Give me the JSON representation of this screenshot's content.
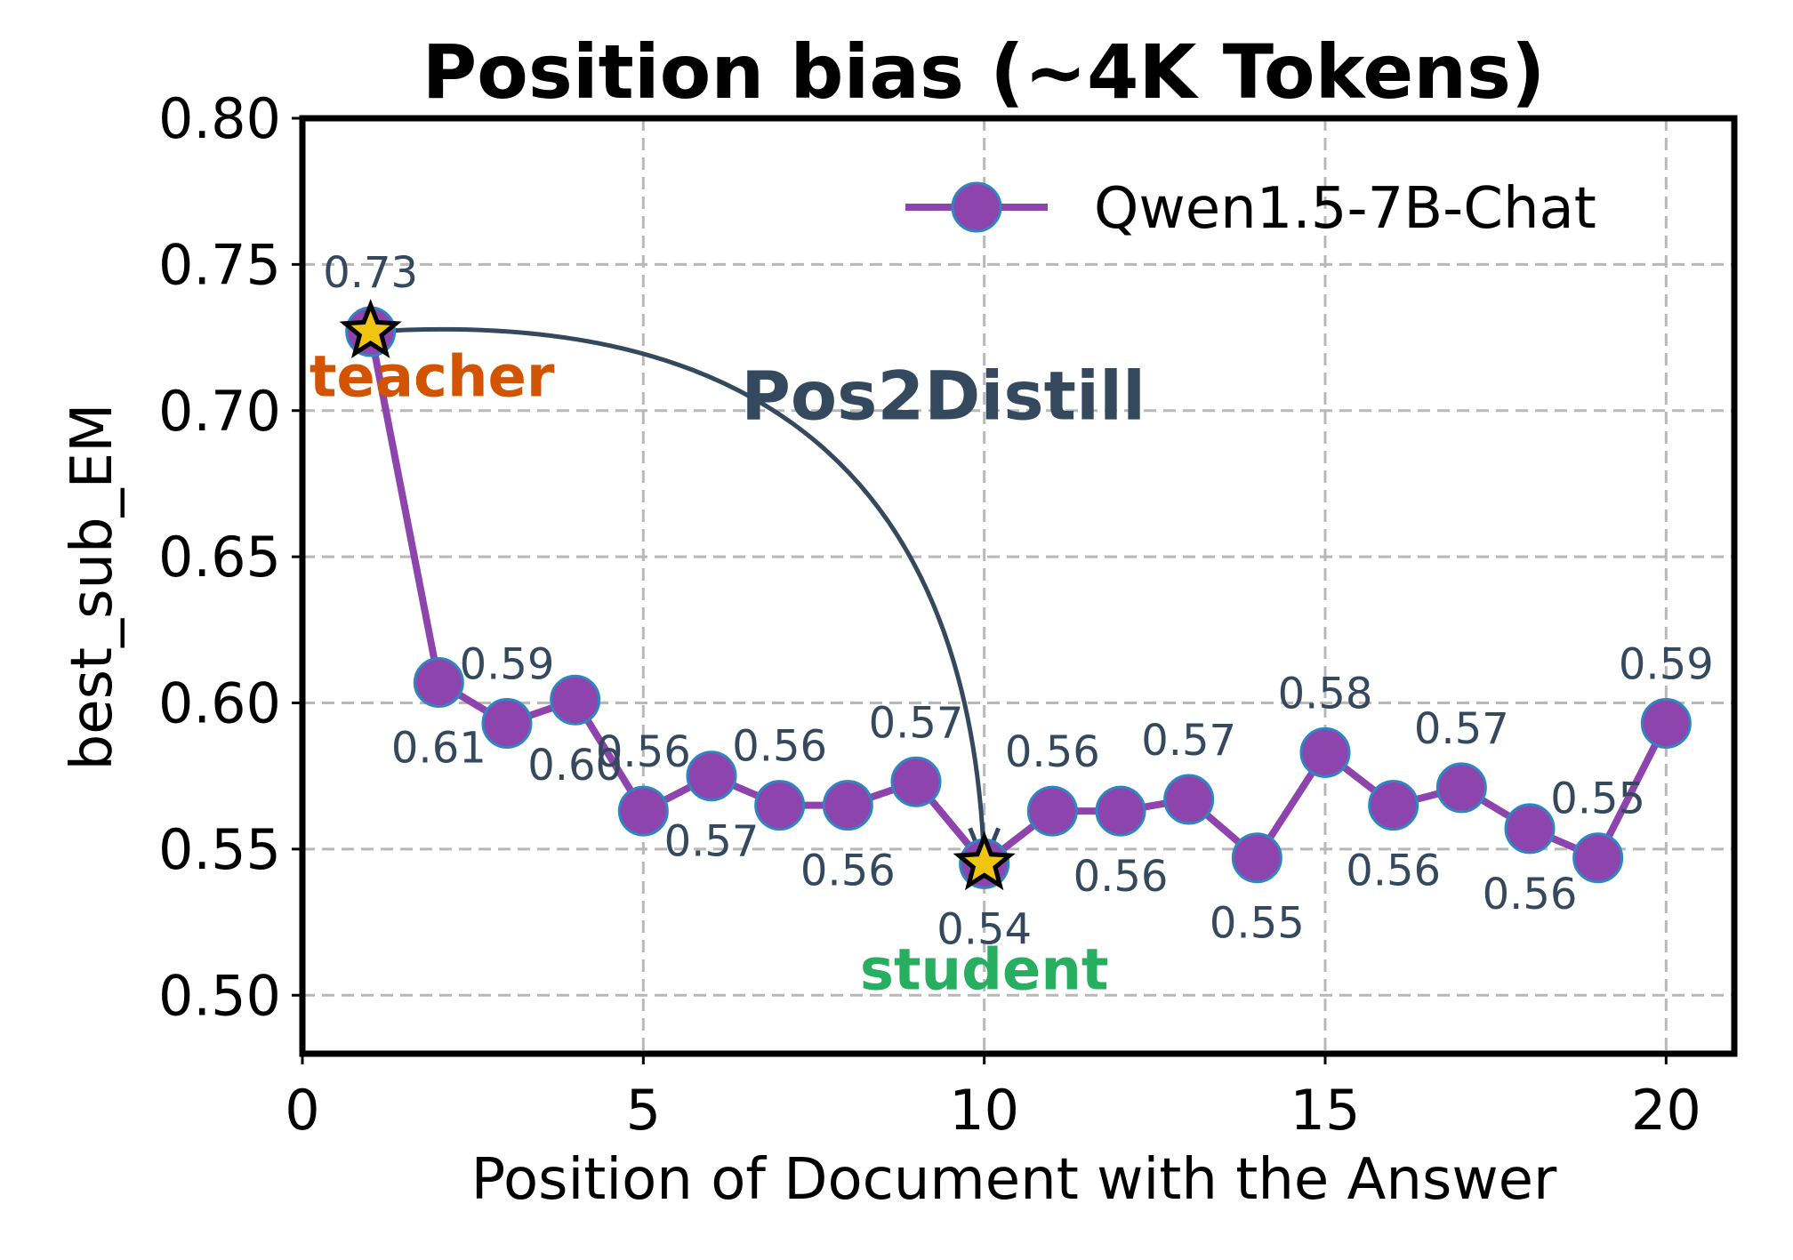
{
  "chart_data": {
    "type": "line",
    "title": "Position bias (~4K Tokens)",
    "xlabel": "Position of Document with the Answer",
    "ylabel": "best_sub_EM",
    "xlim": [
      0,
      21
    ],
    "ylim": [
      0.48,
      0.8
    ],
    "xticks": [
      0,
      5,
      10,
      15,
      20
    ],
    "yticks": [
      0.5,
      0.55,
      0.6,
      0.65,
      0.7,
      0.75,
      0.8
    ],
    "ytick_labels": [
      "0.50",
      "0.55",
      "0.60",
      "0.65",
      "0.70",
      "0.75",
      "0.80"
    ],
    "grid": true,
    "legend_position": "top-right",
    "series": [
      {
        "name": "Qwen1.5-7B-Chat",
        "color": "#8e44ad",
        "marker_edge": "#2e86c1",
        "x": [
          1,
          2,
          3,
          4,
          5,
          6,
          7,
          8,
          9,
          10,
          11,
          12,
          13,
          14,
          15,
          16,
          17,
          18,
          19,
          20
        ],
        "y": [
          0.727,
          0.607,
          0.593,
          0.601,
          0.563,
          0.575,
          0.565,
          0.565,
          0.573,
          0.545,
          0.563,
          0.563,
          0.567,
          0.547,
          0.583,
          0.565,
          0.571,
          0.557,
          0.547,
          0.593
        ],
        "labels": [
          "0.73",
          "0.61",
          "0.59",
          "0.60",
          "0.56",
          "0.57",
          "0.56",
          "0.56",
          "0.57",
          "0.54",
          "0.56",
          "0.56",
          "0.57",
          "0.55",
          "0.58",
          "0.56",
          "0.57",
          "0.56",
          "0.55",
          "0.59"
        ],
        "label_placement": [
          "above",
          "below",
          "above",
          "below",
          "above",
          "below",
          "above",
          "below",
          "above",
          "below",
          "above",
          "below",
          "above",
          "below",
          "above",
          "below",
          "above",
          "below",
          "above",
          "above"
        ]
      }
    ],
    "highlights": [
      {
        "x": 1,
        "y": 0.727,
        "marker": "star",
        "color": "#f1c40f"
      },
      {
        "x": 10,
        "y": 0.545,
        "marker": "star",
        "color": "#f1c40f"
      }
    ],
    "annotations": [
      {
        "text": "teacher",
        "color": "#d35400",
        "x": 1.9,
        "y": 0.705
      },
      {
        "text": "student",
        "color": "#27ae60",
        "x": 10.0,
        "y": 0.502
      },
      {
        "text": "Pos2Distill",
        "color": "#34495e",
        "x": 9.4,
        "y": 0.697
      }
    ],
    "arrow": {
      "from": [
        1,
        0.727
      ],
      "to": [
        10,
        0.545
      ],
      "color": "#34495e"
    }
  }
}
